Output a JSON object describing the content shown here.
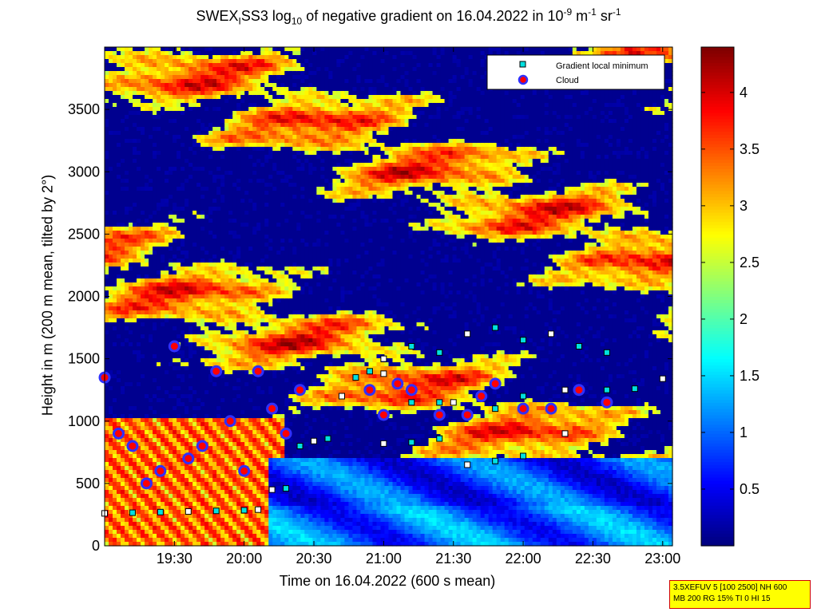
{
  "figure": {
    "title_parts": {
      "a": "SWEX",
      "a_sub": "I",
      "b": "SS3 log",
      "b_sub": "10",
      "c": " of negative gradient on 16.04.2022 in 10",
      "sup1": "-9",
      "d": " m",
      "sup2": "-1",
      "e": " sr",
      "sup3": "-1"
    },
    "info_box": [
      "3.5XEFUV 5 [100 2500] NH 600",
      "MB 200 RG 15% TI 0 HI 15"
    ]
  },
  "chart_data": {
    "type": "heatmap",
    "xlabel": "Time on 16.04.2022 (600 s mean)",
    "ylabel": "Height in m (200 m mean, tilted by 2°)",
    "x_range_hours": [
      19.0,
      23.0
    ],
    "x_ticks": [
      {
        "value": 19.5,
        "label": "19:30"
      },
      {
        "value": 20.0,
        "label": "20:00"
      },
      {
        "value": 20.5,
        "label": "20:30"
      },
      {
        "value": 21.0,
        "label": "21:00"
      },
      {
        "value": 21.5,
        "label": "21:30"
      },
      {
        "value": 22.0,
        "label": "22:00"
      },
      {
        "value": 22.5,
        "label": "22:30"
      },
      {
        "value": 23.0,
        "label": "23:00"
      }
    ],
    "ylim": [
      0,
      4000
    ],
    "y_ticks": [
      0,
      500,
      1000,
      1500,
      2000,
      2500,
      3000,
      3500
    ],
    "colorbar": {
      "range": [
        0,
        4.4
      ],
      "ticks": [
        0.5,
        1,
        1.5,
        2,
        2.5,
        3,
        3.5,
        4
      ],
      "colormap": "jet"
    },
    "legend": {
      "position": "top-right",
      "entries": [
        {
          "label": "Gradient local minimum",
          "marker": "square",
          "color": "#00e0e0"
        },
        {
          "label": "Cloud",
          "marker": "circle",
          "color": "#ff0000",
          "edge": "#3030ff"
        }
      ]
    },
    "gradient_minimum_tracks": [
      {
        "name": "base-layer",
        "x": [
          19.0,
          19.2,
          19.4,
          19.6,
          19.8,
          20.0,
          20.1
        ],
        "y": [
          260,
          265,
          270,
          275,
          280,
          285,
          290
        ]
      },
      {
        "name": "low-layer",
        "x": [
          20.2,
          20.3,
          20.4,
          20.5,
          20.6
        ],
        "y": [
          450,
          460,
          800,
          840,
          860
        ]
      },
      {
        "name": "mid-layer-a",
        "x": [
          20.7,
          20.8,
          20.9,
          21.0,
          21.2,
          21.4,
          21.5,
          21.8,
          22.0,
          22.3,
          22.6,
          22.8,
          23.0
        ],
        "y": [
          1200,
          1350,
          1400,
          1380,
          1150,
          1150,
          1150,
          1100,
          1200,
          1250,
          1250,
          1260,
          1340
        ]
      },
      {
        "name": "mid-layer-b",
        "x": [
          21.0,
          21.2,
          21.4,
          21.6,
          21.8,
          22.0,
          22.3
        ],
        "y": [
          820,
          830,
          860,
          650,
          680,
          720,
          900
        ]
      },
      {
        "name": "upper-scatter",
        "x": [
          21.0,
          21.2,
          21.4,
          21.6,
          21.8,
          22.0,
          22.2,
          22.4,
          22.6
        ],
        "y": [
          1500,
          1600,
          1550,
          1700,
          1750,
          1650,
          1700,
          1600,
          1550
        ]
      }
    ],
    "cloud_tracks": [
      {
        "name": "early-cloud",
        "x": [
          19.0,
          19.1,
          19.2,
          19.3,
          19.4,
          19.5,
          19.6,
          19.7,
          19.8,
          19.9,
          20.0,
          20.1,
          20.2,
          20.3,
          20.4
        ],
        "y": [
          1350,
          900,
          800,
          500,
          600,
          1600,
          700,
          800,
          1400,
          1000,
          600,
          1400,
          1100,
          900,
          1250
        ]
      },
      {
        "name": "late-cloud",
        "x": [
          20.9,
          21.0,
          21.1,
          21.2,
          21.4,
          21.6,
          21.7,
          21.8,
          22.0,
          22.2,
          22.4,
          22.6
        ],
        "y": [
          1250,
          1050,
          1300,
          1250,
          1050,
          1050,
          1200,
          1300,
          1100,
          1100,
          1250,
          1150
        ]
      }
    ]
  }
}
